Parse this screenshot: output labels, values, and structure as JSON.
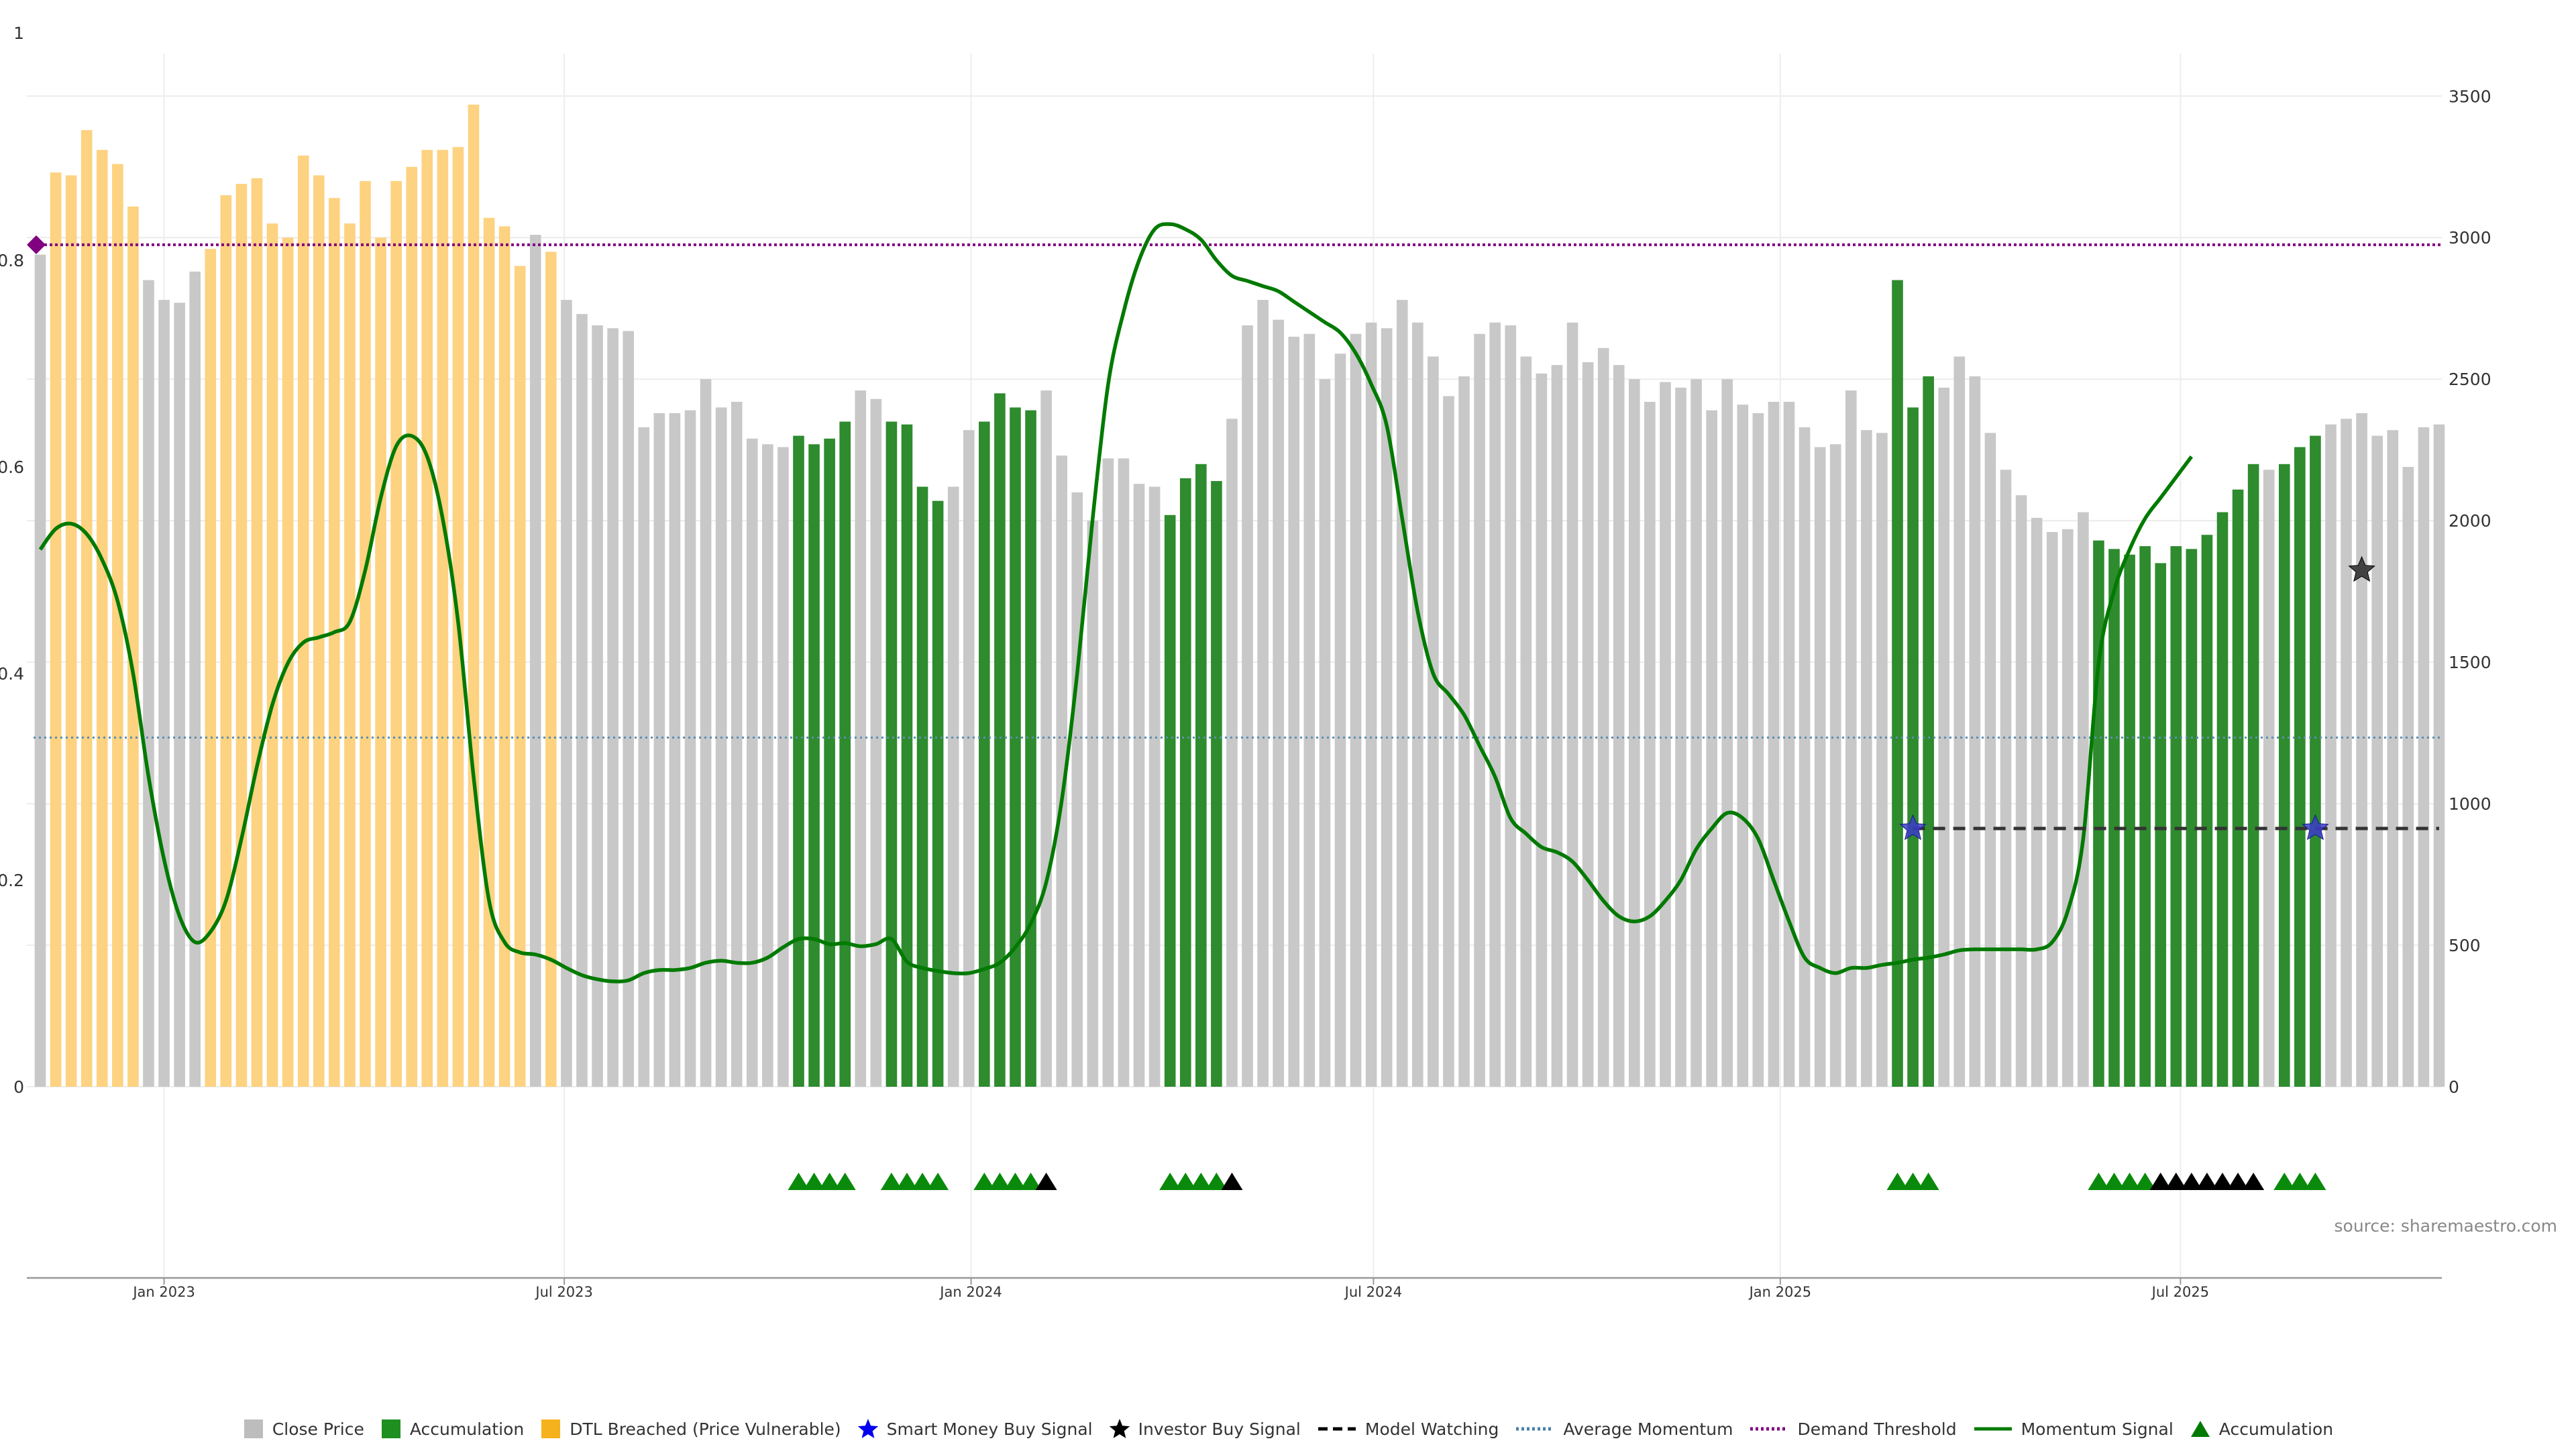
{
  "source_text": "source: sharemaestro.com",
  "colors": {
    "close_price": "#c8c8c8",
    "accumulation": "#2e8b2e",
    "dtl_breached": "#fdd280",
    "smart_money": "#0000cc",
    "investor": "#000000",
    "model_watching": "#333333",
    "average_momentum": "#5b8fb0",
    "demand_threshold": "#800080",
    "momentum_signal": "#007a00",
    "accumulation_marker": "#0a8a0a"
  },
  "legend": [
    {
      "key": "close",
      "label": "Close Price",
      "icon": "square-icon",
      "color": "#bdbdbd"
    },
    {
      "key": "accum",
      "label": "Accumulation",
      "icon": "square-icon",
      "color": "#1f8f1f"
    },
    {
      "key": "dtl",
      "label": "DTL Breached (Price Vulnerable)",
      "icon": "square-icon",
      "color": "#f5b21d"
    },
    {
      "key": "smart",
      "label": "Smart Money Buy Signal",
      "icon": "star-icon",
      "color": "#0000ee"
    },
    {
      "key": "investor",
      "label": "Investor Buy Signal",
      "icon": "star-icon",
      "color": "#000000"
    },
    {
      "key": "watch",
      "label": "Model Watching",
      "icon": "dashed-line-icon",
      "color": "#000000"
    },
    {
      "key": "avg",
      "label": "Average Momentum",
      "icon": "dotted-line-icon",
      "color": "#4a7fa8"
    },
    {
      "key": "demand",
      "label": "Demand Threshold",
      "icon": "dotted-line-icon",
      "color": "#800080"
    },
    {
      "key": "momentum",
      "label": "Momentum Signal",
      "icon": "solid-line-icon",
      "color": "#007a00"
    },
    {
      "key": "accum_marker",
      "label": "Accumulation",
      "icon": "triangle-icon",
      "color": "#007a00"
    }
  ],
  "chart_data": {
    "type": "bar",
    "x_tick_labels": [
      "Jan 2023",
      "Jul 2023",
      "Jan 2024",
      "Jul 2024",
      "Jan 2025",
      "Jul 2025"
    ],
    "x_tick_dates": [
      "2023-01-01",
      "2023-07-01",
      "2024-01-01",
      "2024-07-01",
      "2025-01-01",
      "2025-07-01"
    ],
    "left_axis": {
      "range": [
        0,
        1
      ],
      "ticks": [
        "0",
        "0.2",
        "0.4",
        "0.6",
        "0.8",
        "1"
      ]
    },
    "right_axis": {
      "range": [
        0,
        3650
      ],
      "ticks": [
        "0",
        "500",
        "1000",
        "1500",
        "2000",
        "2500",
        "3000",
        "3500"
      ]
    },
    "grid": true,
    "legend_position": "bottom",
    "first_bar_date": "2022-11-06",
    "bar_interval_days": 7,
    "series": [
      {
        "name": "Close Price",
        "values": [
          2940,
          3230,
          3220,
          3380,
          3310,
          3260,
          3110,
          2850,
          2780,
          2770,
          2880,
          2960,
          3150,
          3190,
          3210,
          3050,
          3000,
          3290,
          3220,
          3140,
          3050,
          3200,
          3000,
          3200,
          3250,
          3310,
          3310,
          3320,
          3470,
          3070,
          3040,
          2900,
          3010,
          2950,
          2780,
          2730,
          2690,
          2680,
          2670,
          2330,
          2380,
          2380,
          2390,
          2500,
          2400,
          2420,
          2290,
          2270,
          2260,
          2300,
          2270,
          2290,
          2350,
          2460,
          2430,
          2350,
          2340,
          2120,
          2070,
          2120,
          2320,
          2350,
          2450,
          2400,
          2390,
          2460,
          2230,
          2100,
          2000,
          2220,
          2220,
          2130,
          2120,
          2020,
          2150,
          2200,
          2140,
          2360,
          2690,
          2780,
          2710,
          2650,
          2660,
          2500,
          2590,
          2660,
          2700,
          2680,
          2780,
          2700,
          2580,
          2440,
          2510,
          2660,
          2700,
          2690,
          2580,
          2520,
          2550,
          2700,
          2560,
          2610,
          2550,
          2500,
          2420,
          2490,
          2470,
          2500,
          2390,
          2500,
          2410,
          2380,
          2420,
          2420,
          2330,
          2260,
          2270,
          2460,
          2320,
          2310,
          2850,
          2400,
          2510,
          2470,
          2580,
          2510,
          2310,
          2180,
          2090,
          2010,
          1960,
          1970,
          2030,
          1930,
          1900,
          1880,
          1910,
          1850,
          1910,
          1900,
          1950,
          2030,
          2110,
          2200,
          2180,
          2200,
          2260,
          2300,
          2340,
          2360,
          2380,
          2300,
          2320,
          2190,
          2330,
          2340
        ]
      },
      {
        "name": "Accumulation",
        "indices": [
          49,
          50,
          51,
          52,
          55,
          56,
          57,
          58,
          61,
          62,
          63,
          64,
          73,
          74,
          75,
          76,
          120,
          121,
          122,
          133,
          134,
          135,
          136,
          137,
          138,
          139,
          140,
          141,
          142,
          143,
          145,
          146,
          147
        ]
      },
      {
        "name": "DTL Breached (Price Vulnerable)",
        "indices": [
          1,
          2,
          3,
          4,
          5,
          6,
          11,
          12,
          13,
          14,
          15,
          16,
          17,
          18,
          19,
          20,
          21,
          22,
          23,
          24,
          25,
          26,
          27,
          28,
          29,
          30,
          31,
          33
        ]
      },
      {
        "name": "Momentum Signal",
        "values": [
          0.52,
          0.54,
          0.545,
          0.535,
          0.51,
          0.47,
          0.4,
          0.3,
          0.22,
          0.165,
          0.14,
          0.15,
          0.18,
          0.24,
          0.31,
          0.37,
          0.41,
          0.43,
          0.435,
          0.44,
          0.45,
          0.5,
          0.57,
          0.62,
          0.63,
          0.61,
          0.55,
          0.45,
          0.3,
          0.18,
          0.14,
          0.13,
          0.128,
          0.123,
          0.115,
          0.108,
          0.104,
          0.102,
          0.103,
          0.11,
          0.113,
          0.113,
          0.115,
          0.12,
          0.122,
          0.12,
          0.12,
          0.125,
          0.135,
          0.143,
          0.143,
          0.138,
          0.139,
          0.136,
          0.138,
          0.143,
          0.121,
          0.115,
          0.112,
          0.11,
          0.11,
          0.114,
          0.12,
          0.135,
          0.158,
          0.198,
          0.277,
          0.4,
          0.55,
          0.68,
          0.75,
          0.8,
          0.83,
          0.835,
          0.83,
          0.82,
          0.8,
          0.785,
          0.78,
          0.775,
          0.77,
          0.76,
          0.75,
          0.74,
          0.73,
          0.71,
          0.68,
          0.64,
          0.55,
          0.46,
          0.4,
          0.38,
          0.36,
          0.33,
          0.3,
          0.26,
          0.245,
          0.232,
          0.227,
          0.218,
          0.2,
          0.18,
          0.165,
          0.16,
          0.165,
          0.18,
          0.2,
          0.23,
          0.25,
          0.265,
          0.26,
          0.24,
          0.2,
          0.16,
          0.125,
          0.115,
          0.11,
          0.115,
          0.115,
          0.118,
          0.12,
          0.123,
          0.125,
          0.128,
          0.132,
          0.133,
          0.133,
          0.133,
          0.133,
          0.133,
          0.14,
          0.17,
          0.24,
          0.41,
          0.48,
          0.52,
          0.55,
          0.57,
          0.59,
          0.61
        ],
        "first_index": 0,
        "step": 1
      },
      {
        "name": "Average Momentum",
        "value": 0.338
      },
      {
        "name": "Demand Threshold",
        "value": 0.815
      },
      {
        "name": "Model Watching",
        "value": 0.25,
        "from_index": 121,
        "to_index": 155
      },
      {
        "name": "Smart Money Buy Signal",
        "points": [
          {
            "index": 121,
            "value": 0.25
          },
          {
            "index": 147,
            "value": 0.25
          }
        ]
      },
      {
        "name": "Investor Buy Signal",
        "points": [
          {
            "index": 150,
            "value": 0.5
          }
        ]
      },
      {
        "name": "Accumulation markers",
        "green_indices": [
          49,
          50,
          51,
          52,
          55,
          56,
          57,
          58,
          61,
          62,
          63,
          64,
          73,
          74,
          75,
          76,
          120,
          121,
          122,
          133,
          134,
          135,
          136,
          137,
          138,
          145,
          146,
          147
        ],
        "black_indices": [
          65,
          77,
          137,
          138,
          139,
          140,
          141,
          142,
          143
        ]
      }
    ]
  }
}
